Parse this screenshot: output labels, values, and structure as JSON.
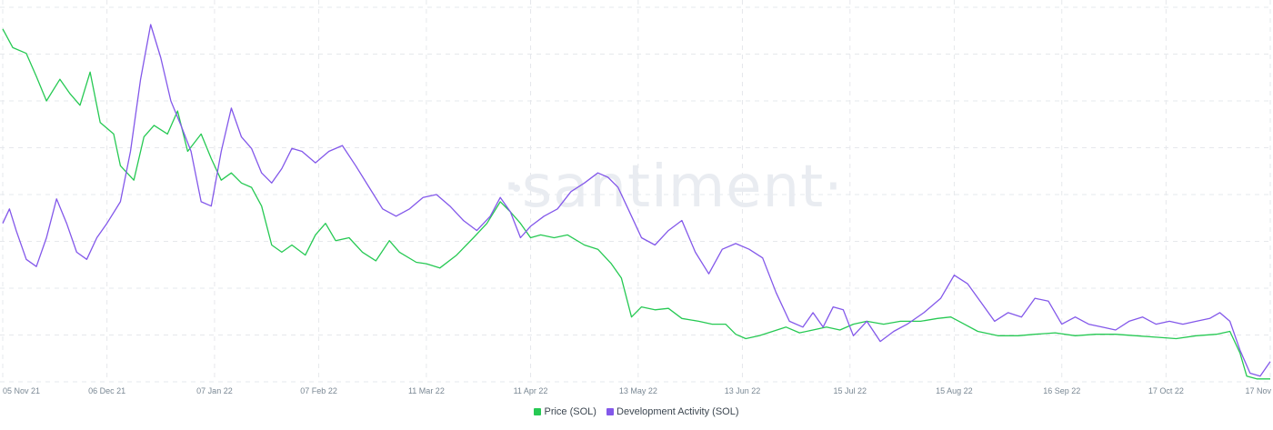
{
  "watermark": "·santiment·",
  "chart_data": {
    "type": "line",
    "title": "",
    "xlabel": "",
    "ylabel": "",
    "x_tick_labels": [
      "05 Nov 21",
      "06 Dec 21",
      "07 Jan 22",
      "07 Feb 22",
      "11 Mar 22",
      "11 Apr 22",
      "13 May 22",
      "13 Jun 22",
      "15 Jul 22",
      "15 Aug 22",
      "16 Sep 22",
      "17 Oct 22",
      "17 Nov"
    ],
    "x_tick_dates": [
      "2021-11-05",
      "2021-12-06",
      "2022-01-07",
      "2022-02-07",
      "2022-03-11",
      "2022-04-11",
      "2022-05-13",
      "2022-06-13",
      "2022-07-15",
      "2022-08-15",
      "2022-09-16",
      "2022-10-17",
      "2022-11-17"
    ],
    "x_range": [
      "2021-11-05",
      "2022-11-17"
    ],
    "y_axis_labels_visible": false,
    "grid": true,
    "legend_position": "bottom-center",
    "series": [
      {
        "name": "Price (SOL)",
        "color": "#26c953",
        "ylim": [
          0,
          260
        ],
        "points": [
          [
            "2021-11-05",
            245
          ],
          [
            "2021-11-08",
            232
          ],
          [
            "2021-11-12",
            228
          ],
          [
            "2021-11-15",
            212
          ],
          [
            "2021-11-18",
            195
          ],
          [
            "2021-11-22",
            210
          ],
          [
            "2021-11-25",
            200
          ],
          [
            "2021-11-28",
            192
          ],
          [
            "2021-12-01",
            215
          ],
          [
            "2021-12-04",
            180
          ],
          [
            "2021-12-08",
            172
          ],
          [
            "2021-12-10",
            150
          ],
          [
            "2021-12-14",
            140
          ],
          [
            "2021-12-17",
            170
          ],
          [
            "2021-12-20",
            178
          ],
          [
            "2021-12-24",
            172
          ],
          [
            "2021-12-27",
            188
          ],
          [
            "2021-12-30",
            160
          ],
          [
            "2022-01-03",
            172
          ],
          [
            "2022-01-06",
            155
          ],
          [
            "2022-01-09",
            140
          ],
          [
            "2022-01-12",
            145
          ],
          [
            "2022-01-15",
            138
          ],
          [
            "2022-01-18",
            135
          ],
          [
            "2022-01-21",
            122
          ],
          [
            "2022-01-24",
            95
          ],
          [
            "2022-01-27",
            90
          ],
          [
            "2022-01-30",
            95
          ],
          [
            "2022-02-03",
            88
          ],
          [
            "2022-02-06",
            102
          ],
          [
            "2022-02-09",
            110
          ],
          [
            "2022-02-12",
            98
          ],
          [
            "2022-02-16",
            100
          ],
          [
            "2022-02-20",
            90
          ],
          [
            "2022-02-24",
            84
          ],
          [
            "2022-02-28",
            98
          ],
          [
            "2022-03-03",
            90
          ],
          [
            "2022-03-08",
            83
          ],
          [
            "2022-03-11",
            82
          ],
          [
            "2022-03-15",
            79
          ],
          [
            "2022-03-20",
            88
          ],
          [
            "2022-03-25",
            100
          ],
          [
            "2022-03-29",
            110
          ],
          [
            "2022-04-02",
            125
          ],
          [
            "2022-04-05",
            118
          ],
          [
            "2022-04-08",
            110
          ],
          [
            "2022-04-11",
            100
          ],
          [
            "2022-04-14",
            102
          ],
          [
            "2022-04-18",
            100
          ],
          [
            "2022-04-22",
            102
          ],
          [
            "2022-04-27",
            95
          ],
          [
            "2022-05-01",
            92
          ],
          [
            "2022-05-05",
            82
          ],
          [
            "2022-05-08",
            72
          ],
          [
            "2022-05-11",
            45
          ],
          [
            "2022-05-14",
            52
          ],
          [
            "2022-05-18",
            50
          ],
          [
            "2022-05-22",
            51
          ],
          [
            "2022-05-26",
            44
          ],
          [
            "2022-05-31",
            42
          ],
          [
            "2022-06-04",
            40
          ],
          [
            "2022-06-08",
            40
          ],
          [
            "2022-06-11",
            33
          ],
          [
            "2022-06-14",
            30
          ],
          [
            "2022-06-18",
            32
          ],
          [
            "2022-06-22",
            35
          ],
          [
            "2022-06-26",
            38
          ],
          [
            "2022-06-30",
            34
          ],
          [
            "2022-07-04",
            36
          ],
          [
            "2022-07-08",
            38
          ],
          [
            "2022-07-12",
            36
          ],
          [
            "2022-07-16",
            40
          ],
          [
            "2022-07-20",
            42
          ],
          [
            "2022-07-25",
            40
          ],
          [
            "2022-07-30",
            42
          ],
          [
            "2022-08-05",
            42
          ],
          [
            "2022-08-10",
            44
          ],
          [
            "2022-08-14",
            45
          ],
          [
            "2022-08-18",
            40
          ],
          [
            "2022-08-22",
            35
          ],
          [
            "2022-08-28",
            32
          ],
          [
            "2022-09-03",
            32
          ],
          [
            "2022-09-08",
            33
          ],
          [
            "2022-09-14",
            34
          ],
          [
            "2022-09-20",
            32
          ],
          [
            "2022-09-26",
            33
          ],
          [
            "2022-10-02",
            33
          ],
          [
            "2022-10-08",
            32
          ],
          [
            "2022-10-14",
            31
          ],
          [
            "2022-10-20",
            30
          ],
          [
            "2022-10-26",
            32
          ],
          [
            "2022-11-01",
            33
          ],
          [
            "2022-11-05",
            35
          ],
          [
            "2022-11-08",
            20
          ],
          [
            "2022-11-10",
            4
          ],
          [
            "2022-11-13",
            2
          ],
          [
            "2022-11-17",
            2
          ]
        ]
      },
      {
        "name": "Development Activity (SOL)",
        "color": "#8358ea",
        "ylim": [
          0,
          260
        ],
        "points": [
          [
            "2021-11-05",
            110
          ],
          [
            "2021-11-07",
            120
          ],
          [
            "2021-11-09",
            105
          ],
          [
            "2021-11-12",
            85
          ],
          [
            "2021-11-15",
            80
          ],
          [
            "2021-11-18",
            100
          ],
          [
            "2021-11-21",
            127
          ],
          [
            "2021-11-24",
            110
          ],
          [
            "2021-11-27",
            90
          ],
          [
            "2021-11-30",
            85
          ],
          [
            "2021-12-03",
            100
          ],
          [
            "2021-12-06",
            110
          ],
          [
            "2021-12-10",
            125
          ],
          [
            "2021-12-13",
            160
          ],
          [
            "2021-12-16",
            210
          ],
          [
            "2021-12-19",
            248
          ],
          [
            "2021-12-22",
            225
          ],
          [
            "2021-12-25",
            195
          ],
          [
            "2021-12-28",
            178
          ],
          [
            "2021-12-31",
            160
          ],
          [
            "2022-01-03",
            125
          ],
          [
            "2022-01-06",
            122
          ],
          [
            "2022-01-09",
            160
          ],
          [
            "2022-01-12",
            190
          ],
          [
            "2022-01-15",
            170
          ],
          [
            "2022-01-18",
            162
          ],
          [
            "2022-01-21",
            145
          ],
          [
            "2022-01-24",
            138
          ],
          [
            "2022-01-27",
            148
          ],
          [
            "2022-01-30",
            162
          ],
          [
            "2022-02-02",
            160
          ],
          [
            "2022-02-06",
            152
          ],
          [
            "2022-02-10",
            160
          ],
          [
            "2022-02-14",
            164
          ],
          [
            "2022-02-18",
            150
          ],
          [
            "2022-02-22",
            135
          ],
          [
            "2022-02-26",
            120
          ],
          [
            "2022-03-02",
            115
          ],
          [
            "2022-03-06",
            120
          ],
          [
            "2022-03-10",
            128
          ],
          [
            "2022-03-14",
            130
          ],
          [
            "2022-03-18",
            122
          ],
          [
            "2022-03-22",
            112
          ],
          [
            "2022-03-26",
            105
          ],
          [
            "2022-03-30",
            115
          ],
          [
            "2022-04-02",
            128
          ],
          [
            "2022-04-05",
            118
          ],
          [
            "2022-04-08",
            100
          ],
          [
            "2022-04-11",
            108
          ],
          [
            "2022-04-15",
            115
          ],
          [
            "2022-04-19",
            120
          ],
          [
            "2022-04-23",
            132
          ],
          [
            "2022-04-27",
            138
          ],
          [
            "2022-05-01",
            145
          ],
          [
            "2022-05-04",
            142
          ],
          [
            "2022-05-07",
            135
          ],
          [
            "2022-05-10",
            120
          ],
          [
            "2022-05-14",
            100
          ],
          [
            "2022-05-18",
            95
          ],
          [
            "2022-05-22",
            105
          ],
          [
            "2022-05-26",
            112
          ],
          [
            "2022-05-30",
            90
          ],
          [
            "2022-06-03",
            75
          ],
          [
            "2022-06-07",
            92
          ],
          [
            "2022-06-11",
            96
          ],
          [
            "2022-06-15",
            92
          ],
          [
            "2022-06-19",
            86
          ],
          [
            "2022-06-23",
            62
          ],
          [
            "2022-06-27",
            42
          ],
          [
            "2022-07-01",
            38
          ],
          [
            "2022-07-04",
            48
          ],
          [
            "2022-07-07",
            38
          ],
          [
            "2022-07-10",
            52
          ],
          [
            "2022-07-13",
            50
          ],
          [
            "2022-07-16",
            32
          ],
          [
            "2022-07-20",
            42
          ],
          [
            "2022-07-24",
            28
          ],
          [
            "2022-07-28",
            35
          ],
          [
            "2022-08-01",
            40
          ],
          [
            "2022-08-06",
            48
          ],
          [
            "2022-08-11",
            58
          ],
          [
            "2022-08-15",
            74
          ],
          [
            "2022-08-19",
            68
          ],
          [
            "2022-08-23",
            55
          ],
          [
            "2022-08-27",
            42
          ],
          [
            "2022-08-31",
            48
          ],
          [
            "2022-09-04",
            45
          ],
          [
            "2022-09-08",
            58
          ],
          [
            "2022-09-12",
            56
          ],
          [
            "2022-09-16",
            40
          ],
          [
            "2022-09-20",
            45
          ],
          [
            "2022-09-24",
            40
          ],
          [
            "2022-09-28",
            38
          ],
          [
            "2022-10-02",
            36
          ],
          [
            "2022-10-06",
            42
          ],
          [
            "2022-10-10",
            45
          ],
          [
            "2022-10-14",
            40
          ],
          [
            "2022-10-18",
            42
          ],
          [
            "2022-10-22",
            40
          ],
          [
            "2022-10-26",
            42
          ],
          [
            "2022-10-30",
            44
          ],
          [
            "2022-11-02",
            48
          ],
          [
            "2022-11-05",
            42
          ],
          [
            "2022-11-08",
            22
          ],
          [
            "2022-11-11",
            6
          ],
          [
            "2022-11-14",
            4
          ],
          [
            "2022-11-17",
            14
          ]
        ]
      }
    ]
  }
}
